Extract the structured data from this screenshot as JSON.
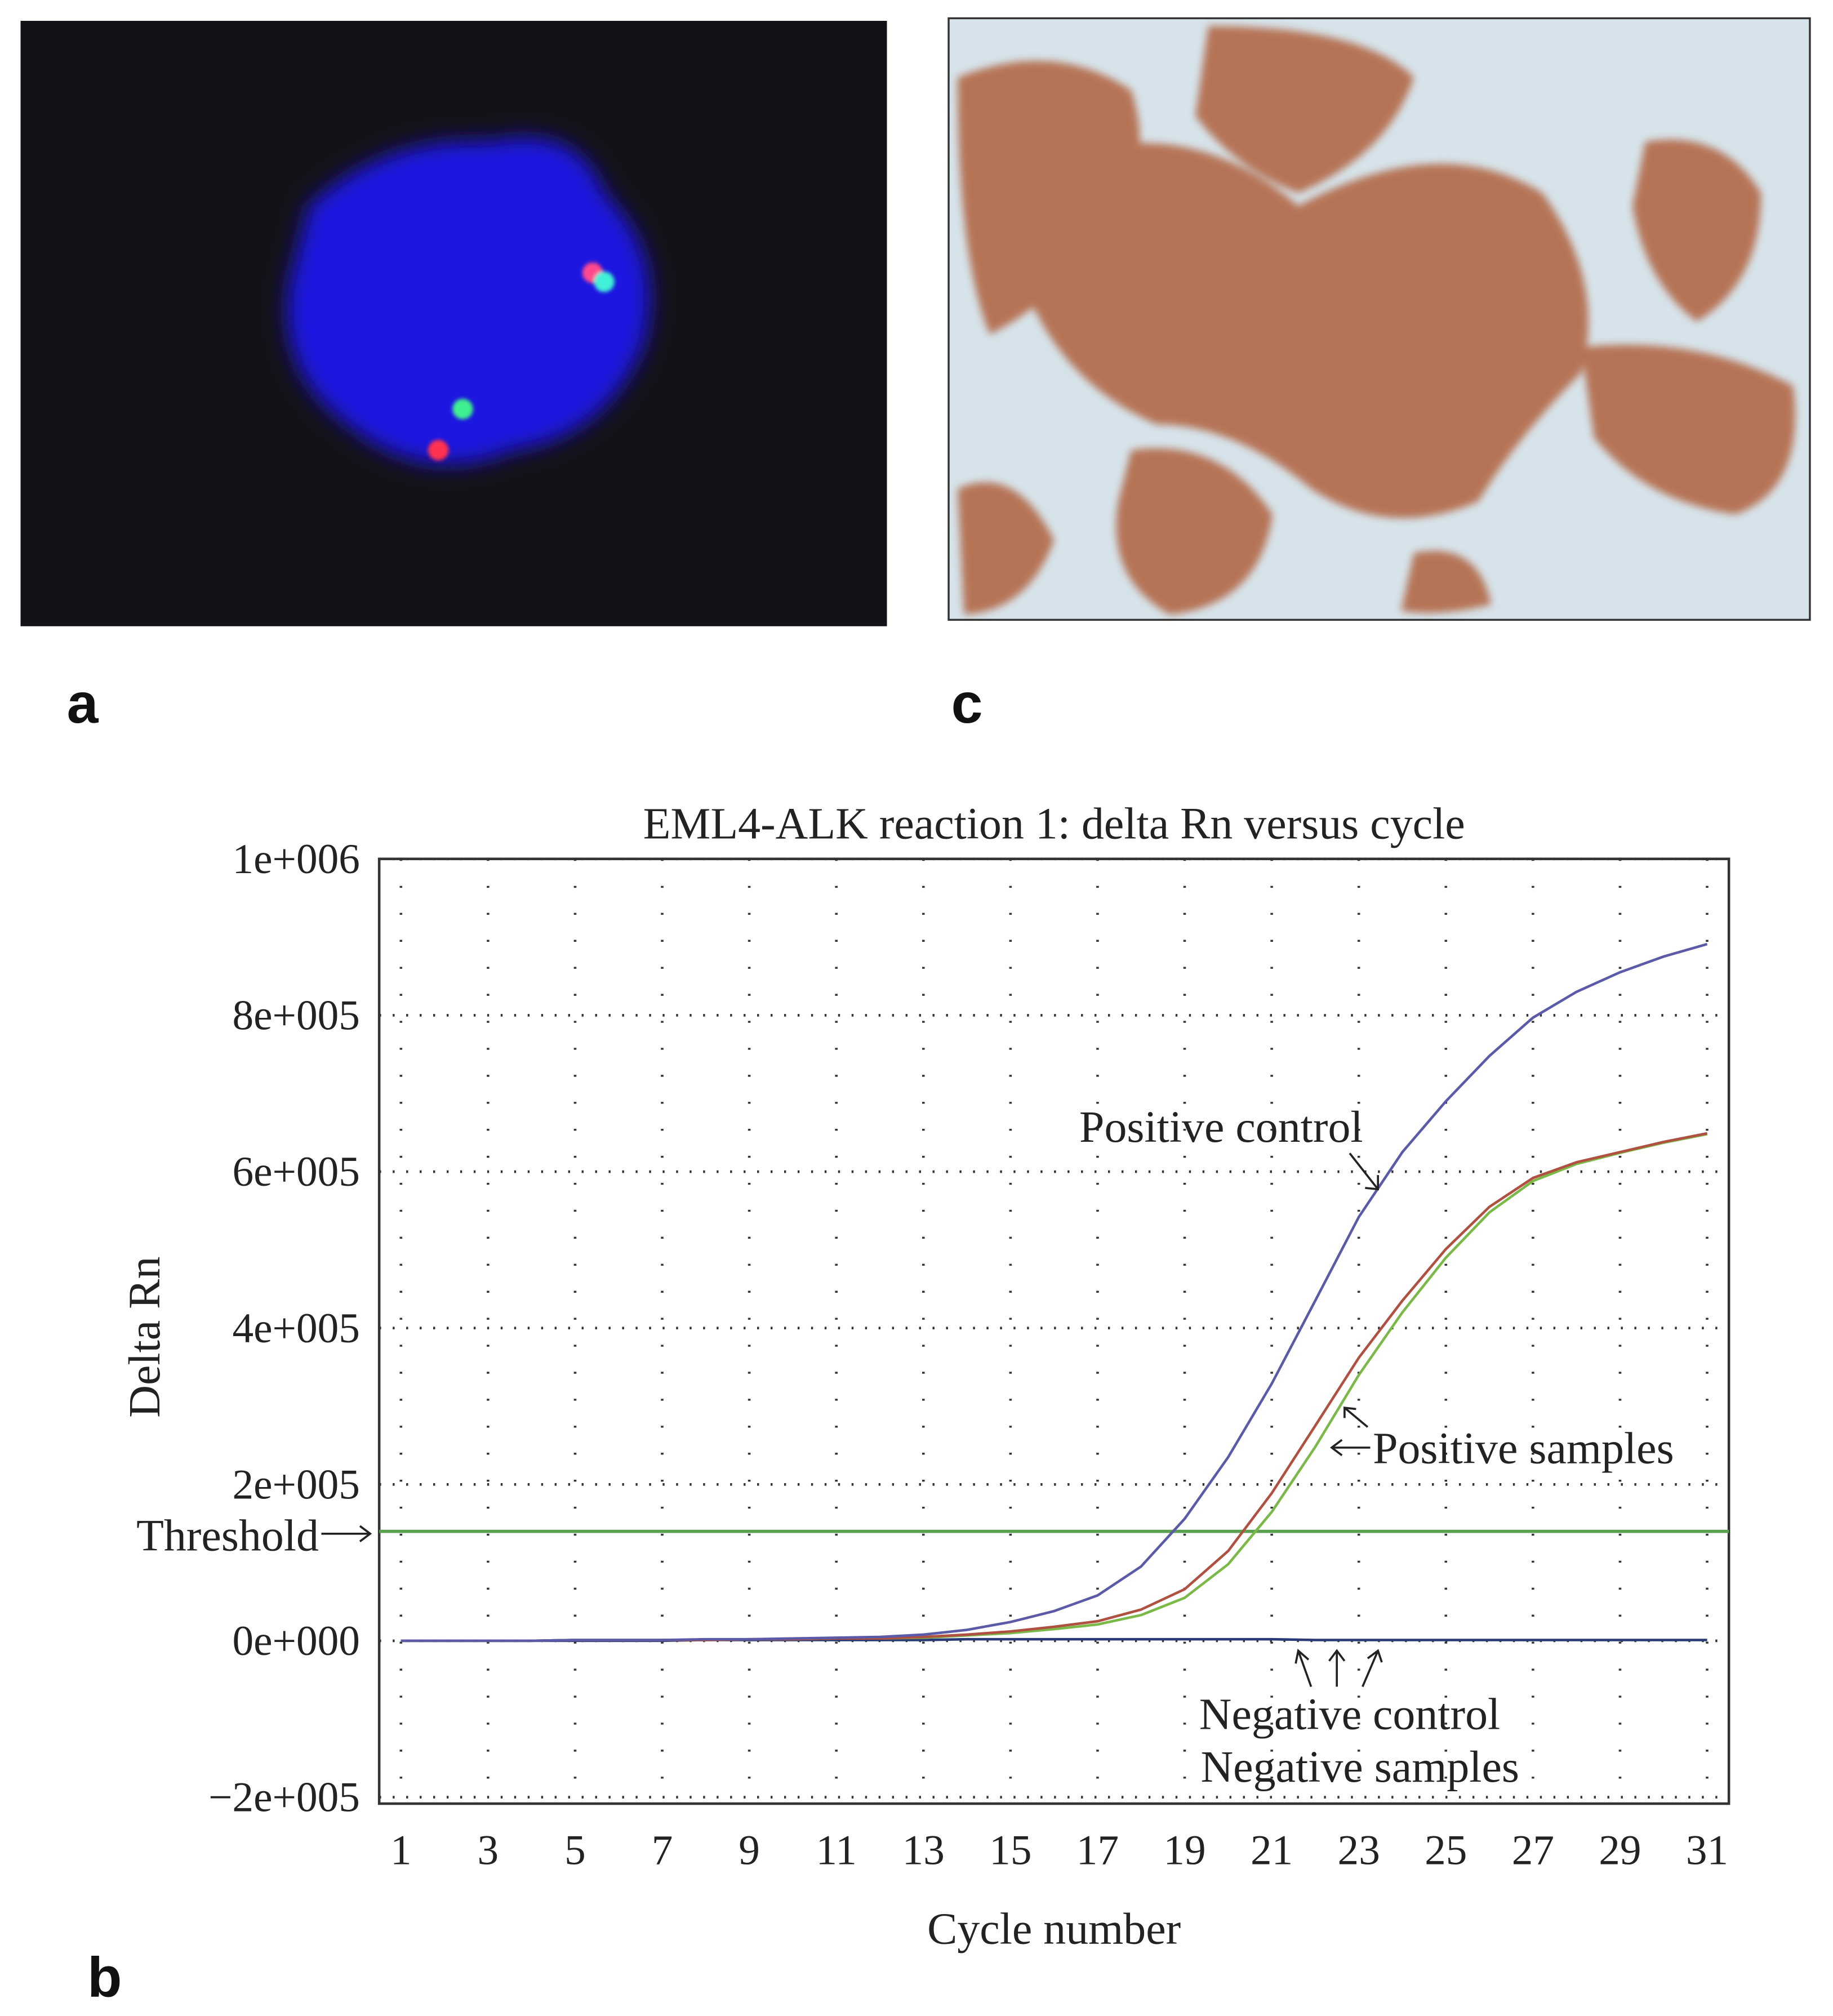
{
  "panel_labels": [
    "a",
    "c",
    "b"
  ],
  "chart_data": {
    "type": "line",
    "title": "EML4-ALK reaction 1: delta Rn versus cycle",
    "xlabel": "Cycle number",
    "ylabel": "Delta Rn",
    "x": [
      1,
      2,
      3,
      4,
      5,
      6,
      7,
      8,
      9,
      10,
      11,
      12,
      13,
      14,
      15,
      16,
      17,
      18,
      19,
      20,
      21,
      22,
      23,
      24,
      25,
      26,
      27,
      28,
      29,
      30,
      31
    ],
    "series": [
      {
        "color": "#5a5aa8",
        "values": [
          0,
          0,
          0,
          0,
          1000,
          1000,
          1000,
          2000,
          2000,
          3000,
          4000,
          5000,
          8000,
          14000,
          24000,
          38000,
          58000,
          95000,
          156000,
          235000,
          329000,
          435000,
          542000,
          625000,
          690000,
          748000,
          797000,
          830000,
          855000,
          875000,
          891000
        ]
      },
      {
        "color": "#b05040",
        "values": [
          0,
          0,
          0,
          0,
          1000,
          1000,
          1000,
          1000,
          2000,
          2000,
          3000,
          3000,
          5000,
          8000,
          12000,
          18000,
          25000,
          40000,
          66000,
          115000,
          189000,
          275000,
          362000,
          435000,
          501000,
          555000,
          592000,
          612000,
          625000,
          638000,
          649000
        ]
      },
      {
        "color": "#7ab848",
        "values": [
          0,
          0,
          0,
          0,
          1000,
          1000,
          1000,
          1000,
          2000,
          2000,
          3000,
          3000,
          4000,
          7000,
          10000,
          15000,
          21000,
          33000,
          55000,
          98000,
          165000,
          248000,
          340000,
          420000,
          490000,
          548000,
          588000,
          610000,
          624000,
          637000,
          648000
        ]
      },
      {
        "color": "#2a3a78",
        "values": [
          0,
          0,
          0,
          0,
          0,
          0,
          0,
          1000,
          1000,
          1000,
          1000,
          1000,
          1000,
          2000,
          2000,
          2000,
          2000,
          2000,
          2000,
          2000,
          2000,
          1000,
          1000,
          1000,
          1000,
          1000,
          1000,
          1000,
          1000,
          1000,
          1000
        ]
      }
    ],
    "threshold": 140000,
    "threshold_color": "#5aa050",
    "annotations": [
      "Threshold",
      "Positive control",
      "Positive samples",
      "Negative control",
      "Negative samples"
    ],
    "xlim": [
      0.5,
      31.5
    ],
    "xticks": [
      1,
      3,
      5,
      7,
      9,
      11,
      13,
      15,
      17,
      19,
      21,
      23,
      25,
      27,
      29,
      31
    ],
    "ylim": [
      -200000,
      1000000
    ],
    "yticks": [
      {
        "value": -200000,
        "label": "−2e+005"
      },
      {
        "value": 0,
        "label": "0e+000"
      },
      {
        "value": 200000,
        "label": "2e+005"
      },
      {
        "value": 400000,
        "label": "4e+005"
      },
      {
        "value": 600000,
        "label": "6e+005"
      },
      {
        "value": 800000,
        "label": "8e+005"
      },
      {
        "value": 1000000,
        "label": "1e+006"
      }
    ],
    "grid": true
  }
}
